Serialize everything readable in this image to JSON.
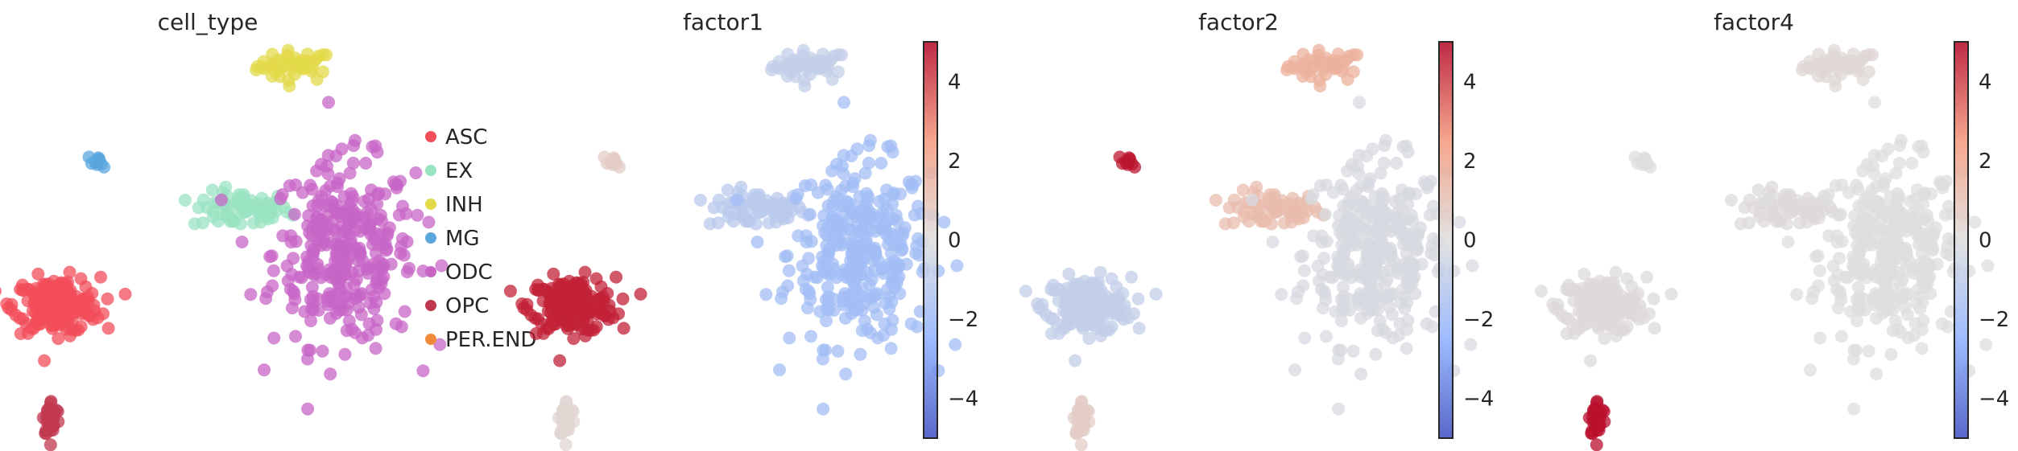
{
  "chart_data": [
    {
      "type": "scatter",
      "title": "cell_type",
      "embedding": "umap",
      "legend_position": "right",
      "legend": [
        {
          "name": "ASC",
          "color": "#f14e59"
        },
        {
          "name": "EX",
          "color": "#9ae3c1"
        },
        {
          "name": "INH",
          "color": "#e3d94a"
        },
        {
          "name": "MG",
          "color": "#5aa6dd"
        },
        {
          "name": "ODC",
          "color": "#c766c7"
        },
        {
          "name": "OPC",
          "color": "#c0384f"
        },
        {
          "name": "PER.END",
          "color": "#ef8a3a"
        }
      ],
      "clusters": [
        {
          "category": "INH",
          "cx": 5.3,
          "cy": 15.9,
          "sx": 0.35,
          "sy": 0.25,
          "n": 45
        },
        {
          "category": "MG",
          "cx": 1.7,
          "cy": 12.8,
          "sx": 0.1,
          "sy": 0.1,
          "n": 10
        },
        {
          "category": "EX",
          "cx": 4.3,
          "cy": 11.2,
          "sx": 0.45,
          "sy": 0.3,
          "n": 70
        },
        {
          "category": "ODC",
          "cx": 6.2,
          "cy": 9.8,
          "sx": 0.65,
          "sy": 1.5,
          "n": 330
        },
        {
          "category": "ASC",
          "cx": 0.9,
          "cy": 8.1,
          "sx": 0.4,
          "sy": 0.45,
          "n": 190
        },
        {
          "category": "OPC",
          "cx": 0.8,
          "cy": 4.4,
          "sx": 0.08,
          "sy": 0.3,
          "n": 35
        }
      ]
    },
    {
      "type": "scatter",
      "title": "factor1",
      "embedding": "umap",
      "colormap": "coolwarm",
      "colorbar": {
        "min": -5,
        "max": 5,
        "ticks": [
          "4",
          "2",
          "0",
          "−2",
          "−4"
        ]
      },
      "clusters": [
        {
          "category": "INH",
          "value": -0.8
        },
        {
          "category": "MG",
          "value": 0.6
        },
        {
          "category": "EX",
          "value": -1.1
        },
        {
          "category": "ODC",
          "value": -1.8
        },
        {
          "category": "ASC",
          "value": 4.5
        },
        {
          "category": "OPC",
          "value": 0.3
        }
      ]
    },
    {
      "type": "scatter",
      "title": "factor2",
      "embedding": "umap",
      "colormap": "coolwarm",
      "colorbar": {
        "min": -5,
        "max": 5,
        "ticks": [
          "4",
          "2",
          "0",
          "−2",
          "−4"
        ]
      },
      "clusters": [
        {
          "category": "INH",
          "value": 1.6
        },
        {
          "category": "MG",
          "value": 4.7
        },
        {
          "category": "EX",
          "value": 1.2
        },
        {
          "category": "ODC",
          "value": -0.2
        },
        {
          "category": "ASC",
          "value": -0.8
        },
        {
          "category": "OPC",
          "value": 0.6
        }
      ]
    },
    {
      "type": "scatter",
      "title": "factor4",
      "embedding": "umap",
      "colormap": "coolwarm",
      "colorbar": {
        "min": -5,
        "max": 5,
        "ticks": [
          "4",
          "2",
          "0",
          "−2",
          "−4"
        ]
      },
      "clusters": [
        {
          "category": "INH",
          "value": 0.2
        },
        {
          "category": "MG",
          "value": 0.0
        },
        {
          "category": "EX",
          "value": 0.1
        },
        {
          "category": "ODC",
          "value": 0.0
        },
        {
          "category": "ASC",
          "value": 0.1
        },
        {
          "category": "OPC",
          "value": 4.8
        }
      ]
    }
  ]
}
